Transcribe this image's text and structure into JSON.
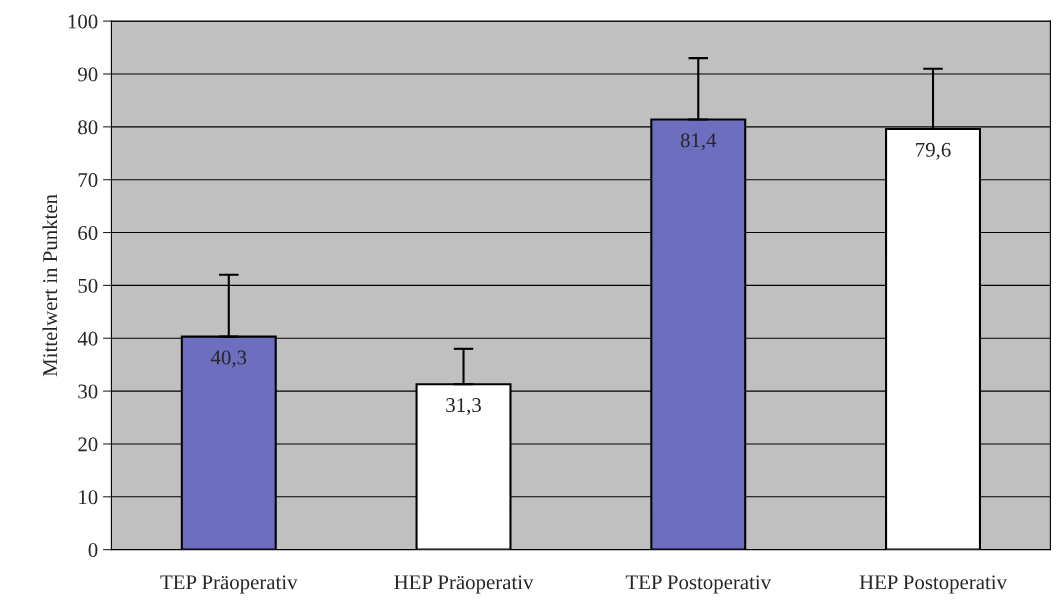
{
  "chart_data": {
    "type": "bar",
    "ylabel": "Mittelwert in Punkten",
    "categories": [
      "TEP Präoperativ",
      "HEP Präoperativ",
      "TEP Postoperativ",
      "HEP Postoperativ"
    ],
    "values": [
      40.3,
      31.3,
      81.4,
      79.6
    ],
    "colors": [
      "#6e6ec0",
      "#ffffff",
      "#6e6ec0",
      "#ffffff"
    ],
    "errors": [
      [
        40.3,
        52
      ],
      [
        31.3,
        38
      ],
      [
        81.4,
        93
      ],
      [
        79.6,
        91
      ]
    ],
    "value_labels": [
      "40,3",
      "31,3",
      "81,4",
      "79,6"
    ],
    "ylim": [
      0,
      100
    ],
    "yticks": [
      0,
      10,
      20,
      30,
      40,
      50,
      60,
      70,
      80,
      90,
      100
    ],
    "grid": "y"
  }
}
